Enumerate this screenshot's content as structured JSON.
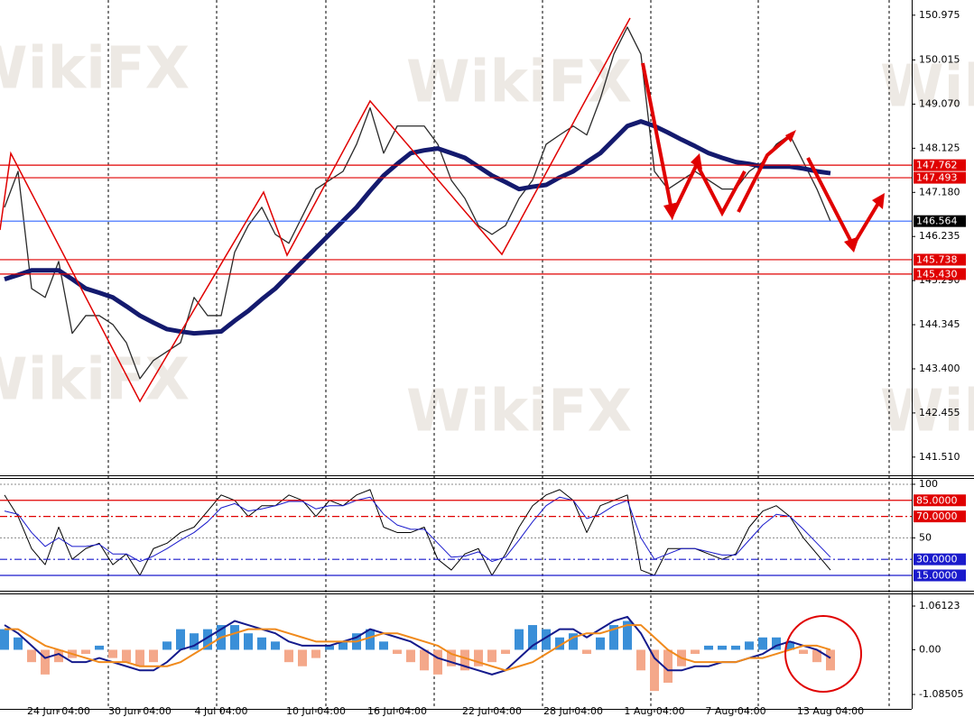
{
  "watermark": "WikiFX",
  "chart_data": [
    {
      "type": "line",
      "categories": [
        null,
        null,
        null,
        null,
        "24 Jun 04:00",
        null,
        null,
        null,
        null,
        null,
        "30 Jun 04:00",
        null,
        null,
        null,
        null,
        null,
        "4 Jul 04:00",
        null,
        null,
        null,
        null,
        null,
        null,
        "10 Jul 04:00",
        null,
        null,
        null,
        null,
        null,
        "16 Jul 04:00",
        null,
        null,
        null,
        null,
        null,
        null,
        "22 Jul 04:00",
        null,
        null,
        null,
        null,
        null,
        "28 Jul 04:00",
        null,
        null,
        null,
        null,
        null,
        "1 Aug 04:00",
        null,
        null,
        null,
        null,
        null,
        "7 Aug 04:00",
        null,
        null,
        null,
        null,
        null,
        null,
        "13 Aug 04:00"
      ],
      "series": [
        {
          "color": "#2a2a2a",
          "width": 1.3,
          "values": [
            146.86,
            147.63,
            145.12,
            144.93,
            145.7,
            144.16,
            144.54,
            144.54,
            144.35,
            143.96,
            143.19,
            143.58,
            143.77,
            143.96,
            144.93,
            144.54,
            144.54,
            145.9,
            146.47,
            146.86,
            146.28,
            146.09,
            146.67,
            147.25,
            147.44,
            147.63,
            148.21,
            148.99,
            148.02,
            148.6,
            148.6,
            148.6,
            148.21,
            147.44,
            147.05,
            146.47,
            146.28,
            146.47,
            147.05,
            147.44,
            148.21,
            148.41,
            148.6,
            148.41,
            149.18,
            150.14,
            150.72,
            150.14,
            147.63,
            147.25,
            147.44,
            147.63,
            147.44,
            147.25,
            147.25,
            147.63,
            147.83,
            148.21,
            148.41,
            147.83,
            147.25,
            146.56
          ]
        },
        {
          "color": "#141a6e",
          "width": 5,
          "values": [
            145.32,
            145.41,
            145.51,
            145.51,
            145.51,
            145.32,
            145.12,
            145.03,
            144.93,
            144.74,
            144.54,
            144.39,
            144.25,
            144.2,
            144.16,
            144.18,
            144.2,
            144.43,
            144.64,
            144.89,
            145.12,
            145.41,
            145.7,
            145.99,
            146.28,
            146.57,
            146.86,
            147.21,
            147.54,
            147.79,
            148.02,
            148.08,
            148.12,
            148.02,
            147.92,
            147.73,
            147.54,
            147.4,
            147.25,
            147.3,
            147.34,
            147.5,
            147.63,
            147.83,
            148.02,
            148.31,
            148.6,
            148.7,
            148.6,
            148.46,
            148.31,
            148.17,
            148.02,
            147.92,
            147.83,
            147.79,
            147.73,
            147.73,
            147.73,
            147.69,
            147.63,
            147.59
          ]
        }
      ],
      "ylim": [
        141.12,
        151.3
      ],
      "yticks": [
        150.975,
        150.015,
        {
          "value": 149.07,
          "label": "149.070"
        },
        148.125,
        {
          "value": 147.18,
          "label": "147.180"
        },
        146.235,
        {
          "value": 145.29,
          "label": "145.290"
        },
        144.345,
        {
          "value": 143.4,
          "label": "143.400"
        },
        142.455,
        {
          "value": 141.51,
          "label": "141.510"
        }
      ],
      "levels": [
        {
          "value": 147.762,
          "color": "#e00000",
          "box": "#e00000",
          "style": "solid"
        },
        {
          "value": 147.493,
          "color": "#e00000",
          "box": "#e00000",
          "style": "solid"
        },
        {
          "value": 146.564,
          "color": "#3366ff",
          "box": "#000000",
          "style": "solid"
        },
        {
          "value": 145.738,
          "color": "#e00000",
          "box": "#e00000",
          "style": "solid"
        },
        {
          "value": 145.43,
          "label": "145.430",
          "color": "#e00000",
          "box": "#e00000",
          "style": "solid"
        }
      ]
    },
    {
      "type": "line",
      "series": [
        {
          "color": "#000000",
          "width": 1,
          "values": [
            90,
            70,
            40,
            25,
            60,
            30,
            40,
            45,
            25,
            35,
            15,
            40,
            45,
            55,
            60,
            75,
            90,
            85,
            70,
            80,
            80,
            90,
            85,
            70,
            85,
            80,
            90,
            95,
            60,
            55,
            55,
            60,
            30,
            20,
            35,
            40,
            15,
            35,
            60,
            80,
            90,
            95,
            85,
            55,
            80,
            85,
            90,
            20,
            15,
            40,
            40,
            40,
            35,
            30,
            35,
            60,
            75,
            80,
            70,
            50,
            35,
            20
          ]
        },
        {
          "color": "#1a1acc",
          "width": 1,
          "values": [
            75,
            72,
            55,
            42,
            50,
            42,
            42,
            44,
            35,
            35,
            28,
            33,
            40,
            48,
            55,
            65,
            78,
            82,
            75,
            77,
            80,
            84,
            84,
            77,
            80,
            80,
            85,
            88,
            72,
            62,
            58,
            58,
            45,
            32,
            33,
            37,
            28,
            32,
            48,
            65,
            80,
            88,
            85,
            68,
            72,
            80,
            85,
            50,
            30,
            35,
            40,
            40,
            37,
            34,
            34,
            48,
            62,
            72,
            70,
            58,
            45,
            32
          ]
        }
      ],
      "ylim": [
        0.7,
        105
      ],
      "yticks": [
        100,
        50
      ],
      "levels": [
        {
          "value": 85,
          "label": "85.0000",
          "color": "#e00000",
          "box": "#e00000",
          "style": "solid"
        },
        {
          "value": 70,
          "label": "70.0000",
          "color": "#e00000",
          "box": "#e00000",
          "style": "dashdot"
        },
        {
          "value": 30,
          "label": "30.0000",
          "color": "#1a1acc",
          "box": "#1a1acc",
          "style": "dashdot"
        },
        {
          "value": 15,
          "label": "15.0000",
          "color": "#1a1acc",
          "box": "#1a1acc",
          "style": "solid"
        }
      ]
    },
    {
      "type": "combo",
      "series": [
        {
          "kind": "bar",
          "color": "#3a8fd8",
          "negative_color": "#f4a88a",
          "values": [
            0.5,
            0.3,
            -0.3,
            -0.6,
            -0.3,
            -0.2,
            -0.1,
            0.1,
            -0.2,
            -0.3,
            -0.4,
            -0.3,
            0.2,
            0.5,
            0.4,
            0.5,
            0.6,
            0.6,
            0.4,
            0.3,
            0.2,
            -0.3,
            -0.4,
            -0.2,
            0.1,
            0.2,
            0.4,
            0.5,
            0.2,
            -0.1,
            -0.3,
            -0.5,
            -0.6,
            -0.4,
            -0.5,
            -0.4,
            -0.3,
            -0.1,
            0.5,
            0.6,
            0.5,
            0.3,
            0.4,
            -0.1,
            0.3,
            0.6,
            0.7,
            -0.5,
            -1.0,
            -0.8,
            -0.4,
            -0.1,
            0.1,
            0.1,
            0.1,
            0.2,
            0.3,
            0.3,
            0.2,
            -0.1,
            -0.3,
            -0.5
          ]
        },
        {
          "kind": "line",
          "color": "#141a8c",
          "width": 2,
          "values": [
            0.6,
            0.4,
            0.1,
            -0.2,
            -0.1,
            -0.3,
            -0.3,
            -0.2,
            -0.3,
            -0.4,
            -0.5,
            -0.5,
            -0.3,
            0,
            0.1,
            0.3,
            0.5,
            0.7,
            0.6,
            0.5,
            0.4,
            0.2,
            0.1,
            0.1,
            0.1,
            0.2,
            0.3,
            0.5,
            0.4,
            0.3,
            0.2,
            0,
            -0.2,
            -0.3,
            -0.4,
            -0.5,
            -0.6,
            -0.5,
            -0.2,
            0.1,
            0.3,
            0.5,
            0.5,
            0.3,
            0.5,
            0.7,
            0.8,
            0.4,
            -0.2,
            -0.5,
            -0.5,
            -0.4,
            -0.4,
            -0.3,
            -0.3,
            -0.2,
            -0.1,
            0.1,
            0.2,
            0.1,
            0,
            -0.2
          ]
        },
        {
          "kind": "line",
          "color": "#f08a1c",
          "width": 2,
          "values": [
            0.5,
            0.5,
            0.3,
            0.1,
            0,
            -0.1,
            -0.2,
            -0.3,
            -0.3,
            -0.3,
            -0.4,
            -0.4,
            -0.4,
            -0.3,
            -0.1,
            0.1,
            0.3,
            0.4,
            0.5,
            0.5,
            0.5,
            0.4,
            0.3,
            0.2,
            0.2,
            0.2,
            0.2,
            0.3,
            0.4,
            0.4,
            0.3,
            0.2,
            0.1,
            -0.1,
            -0.2,
            -0.3,
            -0.4,
            -0.5,
            -0.4,
            -0.3,
            -0.1,
            0.1,
            0.3,
            0.4,
            0.4,
            0.5,
            0.6,
            0.6,
            0.3,
            0,
            -0.2,
            -0.3,
            -0.3,
            -0.3,
            -0.3,
            -0.2,
            -0.2,
            -0.1,
            0,
            0.1,
            0.1,
            0
          ]
        }
      ],
      "ylim": [
        -1.435,
        1.346
      ],
      "yticks": [
        1.06123,
        {
          "value": 0,
          "label": "0.00"
        },
        -1.08505
      ]
    }
  ]
}
